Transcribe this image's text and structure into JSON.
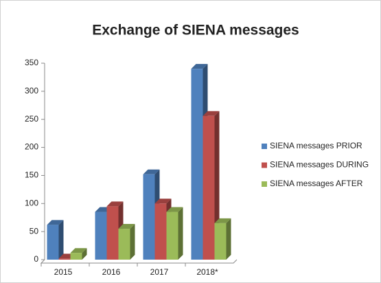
{
  "chart_data": {
    "type": "bar3d",
    "title": "Exchange of SIENA messages",
    "categories": [
      "2015",
      "2016",
      "2017",
      "2018*"
    ],
    "series": [
      {
        "name": "SIENA messages PRIOR",
        "color": "#4f81bd",
        "values": [
          62,
          85,
          152,
          340
        ]
      },
      {
        "name": "SIENA messages DURING",
        "color": "#c0504d",
        "values": [
          2,
          95,
          100,
          256
        ]
      },
      {
        "name": "SIENA messages AFTER",
        "color": "#9bbb59",
        "values": [
          12,
          55,
          85,
          65
        ]
      }
    ],
    "ylim": [
      0,
      350
    ],
    "yticks": [
      0,
      50,
      100,
      150,
      200,
      250,
      300,
      350
    ],
    "legend": "right"
  }
}
